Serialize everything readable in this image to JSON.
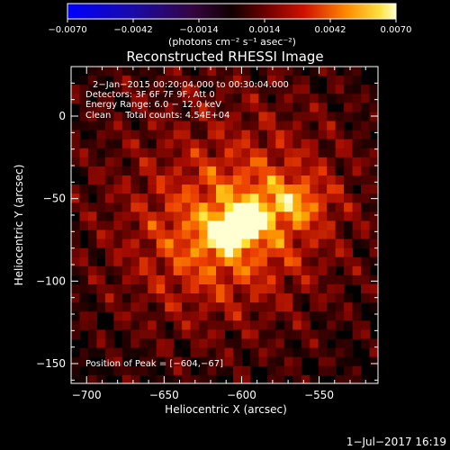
{
  "colorbar": {
    "min": -0.007,
    "max": 0.007,
    "tick_labels": [
      "−0.0070",
      "−0.0042",
      "−0.0014",
      "0.0014",
      "0.0042",
      "0.0070"
    ],
    "tick_values": [
      -0.007,
      -0.0042,
      -0.0014,
      0.0014,
      0.0042,
      0.007
    ],
    "units_label": "(photons cm⁻² s⁻¹ asec⁻²)"
  },
  "chart_data": {
    "type": "heatmap",
    "title": "Reconstructed RHESSI Image",
    "xlabel": "Heliocentric X (arcsec)",
    "ylabel": "Heliocentric Y (arcsec)",
    "xlim": [
      -710,
      -512
    ],
    "ylim": [
      -162,
      30
    ],
    "x_ticks": [
      -700,
      -650,
      -600,
      -550
    ],
    "x_tick_labels": [
      "−700",
      "−650",
      "−600",
      "−550"
    ],
    "y_ticks": [
      0,
      -50,
      -100,
      -150
    ],
    "y_tick_labels": [
      "0",
      "−50",
      "−100",
      "−150"
    ],
    "peak": {
      "x": -604,
      "y": -67
    },
    "annotations": [
      "2−Jan−2015 00:20:04.000 to 00:30:04.000",
      "Detectors: 3F 6F 7F 9F, Att 0",
      "Energy Range: 6.0 − 12.0 keV",
      "Clean     Total counts: 4.54E+04"
    ],
    "peak_label": "Position of Peak = [−604,−67]"
  },
  "timestamp": "1−Jul−2017 16:19"
}
